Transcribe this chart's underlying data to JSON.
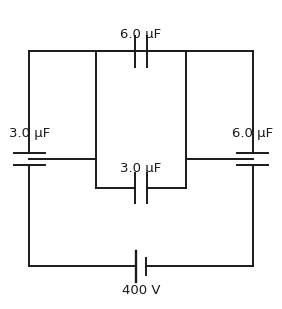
{
  "figsize": [
    2.82,
    3.09
  ],
  "dpi": 100,
  "bg_color": "#ffffff",
  "line_color": "#1a1a1a",
  "line_width": 1.4,
  "labels": {
    "top_cap": "6.0 μF",
    "left_cap": "3.0 μF",
    "right_cap": "6.0 μF",
    "bottom_inner_cap": "3.0 μF",
    "battery": "400 V"
  },
  "font_size": 9.5,
  "OL": 0.1,
  "OR": 0.9,
  "OT": 0.87,
  "OB": 0.1,
  "IL": 0.34,
  "IR": 0.66,
  "IT": 0.87,
  "IB": 0.38
}
